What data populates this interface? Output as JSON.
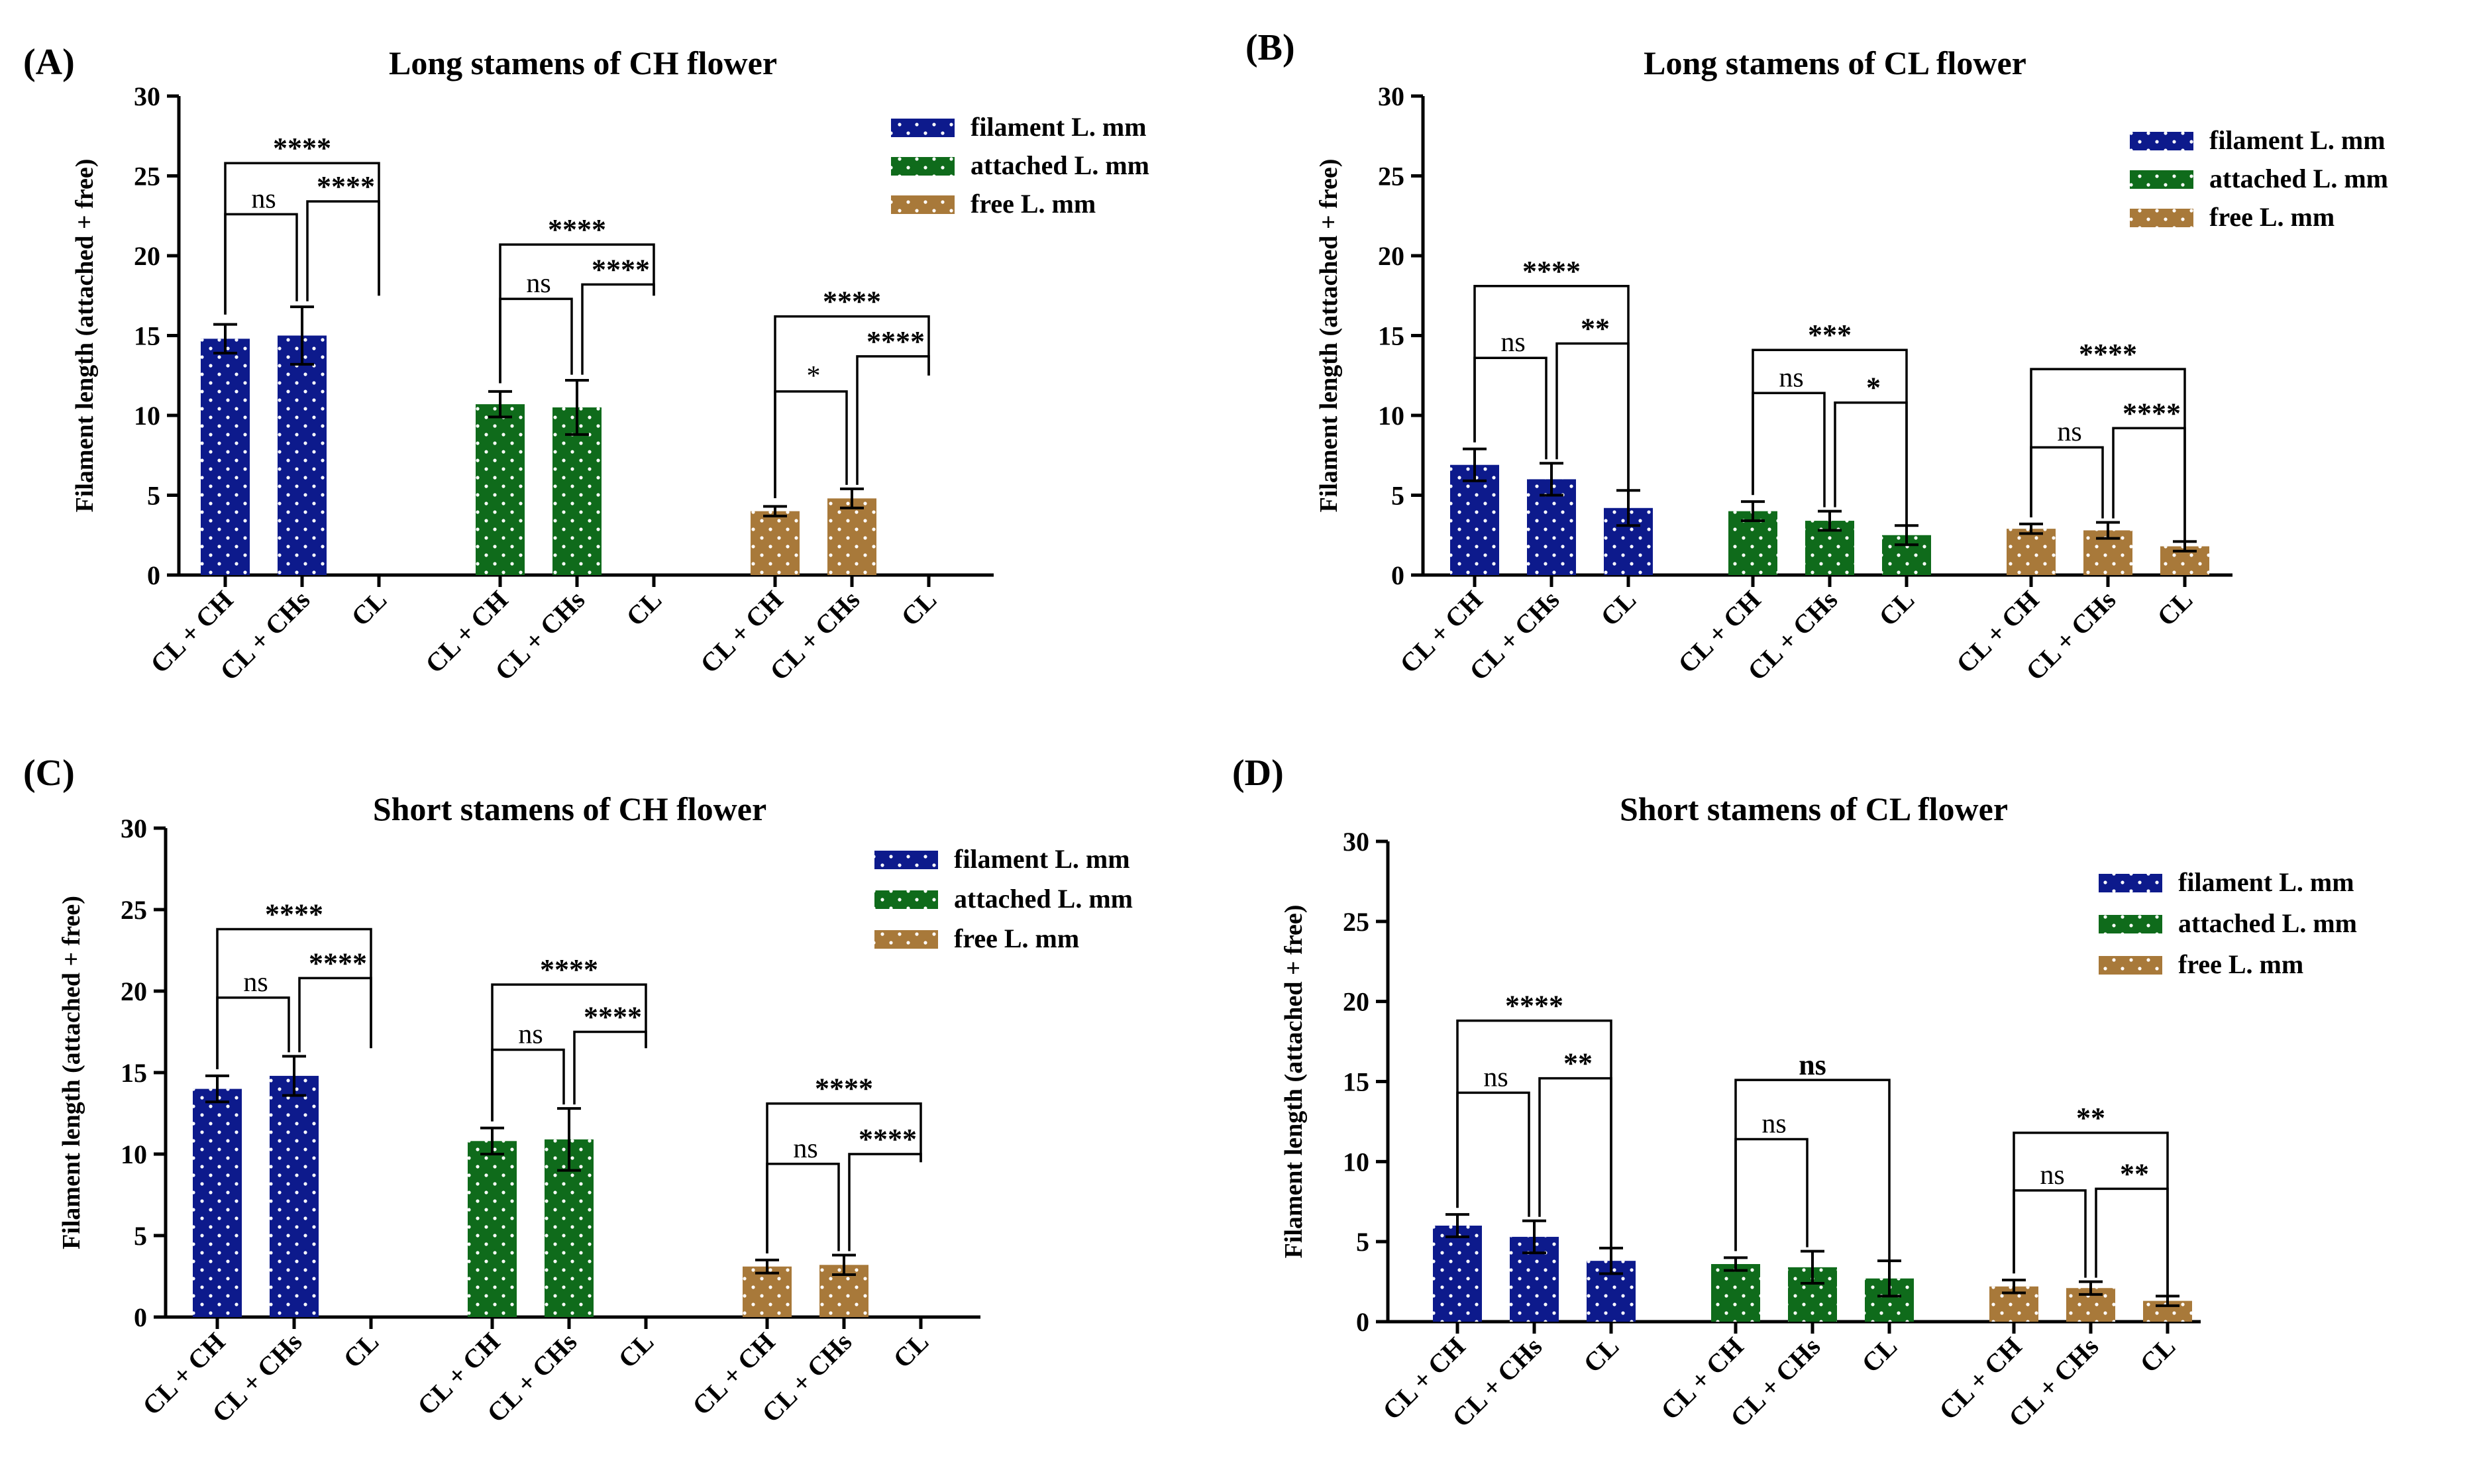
{
  "legend_labels": [
    "filament L. mm",
    "attached L. mm",
    "free L. mm"
  ],
  "colors": {
    "filament": "#0d1a8c",
    "attached": "#0f6b1b",
    "free": "#a8793a",
    "ink": "#000000"
  },
  "chart_data": [
    {
      "letter": "(A)",
      "type": "bar",
      "title": "Long stamens of CH flower",
      "ylabel": "Filament length (attached + free)",
      "ylim": [
        0,
        30
      ],
      "yticks": [
        "0",
        "5",
        "10",
        "15",
        "20",
        "25",
        "30"
      ],
      "categories": [
        "CL + CH",
        "CL + CHs",
        "CL"
      ],
      "legend_position": "top-right",
      "series": [
        {
          "name": "filament L. mm",
          "values": [
            14.8,
            15.0,
            0
          ],
          "errors": [
            0.9,
            1.8,
            0
          ]
        },
        {
          "name": "attached L. mm",
          "values": [
            10.7,
            10.5,
            0
          ],
          "errors": [
            0.8,
            1.7,
            0
          ]
        },
        {
          "name": "free L. mm",
          "values": [
            4.0,
            4.8,
            0
          ],
          "errors": [
            0.3,
            0.6,
            0
          ]
        }
      ],
      "significance": [
        {
          "group": 0,
          "inner_left": "ns",
          "inner_right": "****",
          "outer": "****",
          "inner_left_y": 22.6,
          "inner_right_y": 23.4,
          "outer_y": 25.8,
          "ends": [
            15.9,
            16.9,
            17.5
          ]
        },
        {
          "group": 1,
          "inner_left": "ns",
          "inner_right": "****",
          "outer": "****",
          "inner_left_y": 17.3,
          "inner_right_y": 18.2,
          "outer_y": 20.7,
          "ends": [
            11.6,
            12.3,
            17.5
          ]
        },
        {
          "group": 2,
          "inner_left": "*",
          "inner_right": "****",
          "outer": "****",
          "inner_left_y": 11.5,
          "inner_right_y": 13.7,
          "outer_y": 16.2,
          "ends": [
            4.4,
            5.4,
            12.5
          ]
        }
      ]
    },
    {
      "letter": "(B)",
      "type": "bar",
      "title": "Long stamens of CL flower",
      "ylabel": "Filament length (attached + free)",
      "ylim": [
        0,
        30
      ],
      "yticks": [
        "0",
        "5",
        "10",
        "15",
        "20",
        "25",
        "30"
      ],
      "categories": [
        "CL + CH",
        "CL + CHs",
        "CL"
      ],
      "legend_position": "top-right",
      "series": [
        {
          "name": "filament L. mm",
          "values": [
            6.9,
            6.0,
            4.2
          ],
          "errors": [
            1.0,
            1.0,
            1.1
          ]
        },
        {
          "name": "attached L. mm",
          "values": [
            4.0,
            3.4,
            2.5
          ],
          "errors": [
            0.6,
            0.6,
            0.6
          ]
        },
        {
          "name": "free L. mm",
          "values": [
            2.9,
            2.8,
            1.8
          ],
          "errors": [
            0.3,
            0.5,
            0.3
          ]
        }
      ],
      "significance": [
        {
          "group": 0,
          "inner_left": "ns",
          "inner_right": "**",
          "outer": "****",
          "inner_left_y": 13.6,
          "inner_right_y": 14.5,
          "outer_y": 18.1,
          "ends": [
            7.9,
            7.0,
            5.3
          ]
        },
        {
          "group": 1,
          "inner_left": "ns",
          "inner_right": "*",
          "outer": "***",
          "inner_left_y": 11.4,
          "inner_right_y": 10.8,
          "outer_y": 14.1,
          "ends": [
            4.6,
            4.0,
            3.1
          ]
        },
        {
          "group": 2,
          "inner_left": "ns",
          "inner_right": "****",
          "outer": "****",
          "inner_left_y": 8.0,
          "inner_right_y": 9.2,
          "outer_y": 12.9,
          "ends": [
            3.2,
            3.3,
            2.1
          ]
        }
      ]
    },
    {
      "letter": "(C)",
      "type": "bar",
      "title": "Short stamens of CH flower",
      "ylabel": "Filament length (attached + free)",
      "ylim": [
        0,
        30
      ],
      "yticks": [
        "0",
        "5",
        "10",
        "15",
        "20",
        "25",
        "30"
      ],
      "categories": [
        "CL + CH",
        "CL + CHs",
        "CL"
      ],
      "legend_position": "top-right",
      "series": [
        {
          "name": "filament L. mm",
          "values": [
            14.0,
            14.8,
            0
          ],
          "errors": [
            0.8,
            1.2,
            0
          ]
        },
        {
          "name": "attached L. mm",
          "values": [
            10.8,
            10.9,
            0
          ],
          "errors": [
            0.8,
            1.9,
            0
          ]
        },
        {
          "name": "free L. mm",
          "values": [
            3.1,
            3.2,
            0
          ],
          "errors": [
            0.4,
            0.6,
            0
          ]
        }
      ],
      "significance": [
        {
          "group": 0,
          "inner_left": "ns",
          "inner_right": "****",
          "outer": "****",
          "inner_left_y": 19.6,
          "inner_right_y": 20.8,
          "outer_y": 23.8,
          "ends": [
            14.8,
            16.0,
            16.5
          ]
        },
        {
          "group": 1,
          "inner_left": "ns",
          "inner_right": "****",
          "outer": "****",
          "inner_left_y": 16.4,
          "inner_right_y": 17.5,
          "outer_y": 20.4,
          "ends": [
            11.6,
            12.8,
            16.5
          ]
        },
        {
          "group": 2,
          "inner_left": "ns",
          "inner_right": "****",
          "outer": "****",
          "inner_left_y": 9.4,
          "inner_right_y": 10.0,
          "outer_y": 13.1,
          "ends": [
            3.5,
            3.8,
            9.5
          ]
        }
      ]
    },
    {
      "letter": "(D)",
      "type": "bar",
      "title": "Short stamens of CL flower",
      "ylabel": "Filament length (attached + free)",
      "ylim": [
        0,
        30
      ],
      "yticks": [
        "0",
        "5",
        "10",
        "15",
        "20",
        "25",
        "30"
      ],
      "categories": [
        "CL + CH",
        "CL + CHs",
        "CL"
      ],
      "legend_position": "top-right",
      "series": [
        {
          "name": "filament L. mm",
          "values": [
            6.0,
            5.3,
            3.8
          ],
          "errors": [
            0.7,
            1.0,
            0.8
          ]
        },
        {
          "name": "attached L. mm",
          "values": [
            3.6,
            3.4,
            2.7
          ],
          "errors": [
            0.4,
            1.0,
            1.1
          ]
        },
        {
          "name": "free L. mm",
          "values": [
            2.2,
            2.1,
            1.3
          ],
          "errors": [
            0.4,
            0.4,
            0.3
          ]
        }
      ],
      "significance": [
        {
          "group": 0,
          "inner_left": "ns",
          "inner_right": "**",
          "outer": "****",
          "inner_left_y": 14.3,
          "inner_right_y": 15.2,
          "outer_y": 18.8,
          "ends": [
            6.7,
            6.3,
            4.6
          ]
        },
        {
          "group": 1,
          "inner_left": "ns",
          "inner_right": "",
          "outer": "ns",
          "inner_left_y": 11.4,
          "inner_right_y": 0,
          "outer_y": 15.1,
          "ends": [
            4.0,
            4.4,
            3.8
          ]
        },
        {
          "group": 2,
          "inner_left": "ns",
          "inner_right": "**",
          "outer": "**",
          "inner_left_y": 8.2,
          "inner_right_y": 8.3,
          "outer_y": 11.8,
          "ends": [
            2.6,
            2.5,
            1.6
          ]
        }
      ]
    }
  ]
}
